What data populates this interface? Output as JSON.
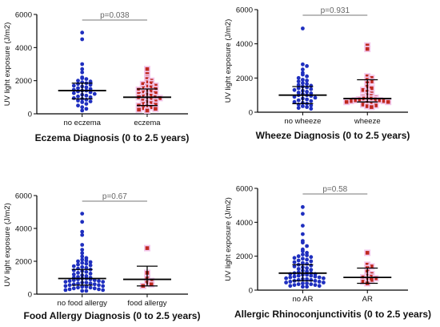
{
  "chart_data": [
    {
      "type": "scatter",
      "title": "Eczema Diagnosis (0 to 2.5 years)",
      "ylabel": "UV light exposure (J/m2)",
      "ylim": [
        0,
        6000
      ],
      "yticks": [
        "0",
        "2000",
        "4000",
        "6000"
      ],
      "categories": [
        "no eczema",
        "eczema"
      ],
      "annotation": "p=0.038",
      "colors": [
        "#1f2fbf",
        "#c0281f"
      ],
      "series": [
        {
          "median": 1400,
          "iqr": [
            900,
            1850
          ],
          "values": [
            4900,
            4500,
            3000,
            2700,
            2500,
            2200,
            2150,
            2100,
            2000,
            1950,
            1900,
            1850,
            1800,
            1750,
            1700,
            1650,
            1600,
            1550,
            1500,
            1450,
            1400,
            1400,
            1350,
            1300,
            1250,
            1200,
            1150,
            1100,
            1050,
            1000,
            950,
            900,
            850,
            800,
            750,
            700,
            600,
            500,
            400,
            300,
            200
          ]
        },
        {
          "median": 1000,
          "iqr": [
            500,
            1500
          ],
          "values": [
            2700,
            2400,
            2200,
            2100,
            2000,
            1900,
            1850,
            1800,
            1700,
            1650,
            1600,
            1550,
            1500,
            1450,
            1400,
            1350,
            1300,
            1250,
            1200,
            1150,
            1100,
            1050,
            1000,
            1000,
            950,
            900,
            850,
            800,
            750,
            700,
            650,
            600,
            550,
            500,
            450,
            400,
            350,
            300,
            250,
            200
          ]
        }
      ]
    },
    {
      "type": "scatter",
      "title": "Wheeze Diagnosis (0 to 2.5 years)",
      "ylabel": "UV light exposure (J/m2)",
      "ylim": [
        0,
        6000
      ],
      "yticks": [
        "0",
        "2000",
        "4000",
        "6000"
      ],
      "categories": [
        "no wheeze",
        "wheeze"
      ],
      "annotation": "p=0.931",
      "colors": [
        "#1f2fbf",
        "#c0281f"
      ],
      "series": [
        {
          "median": 1000,
          "iqr": [
            500,
            1500
          ],
          "values": [
            4900,
            2800,
            2700,
            2500,
            2300,
            2200,
            2100,
            2000,
            1900,
            1850,
            1800,
            1700,
            1650,
            1600,
            1550,
            1500,
            1450,
            1400,
            1350,
            1300,
            1250,
            1200,
            1150,
            1100,
            1050,
            1000,
            1000,
            950,
            900,
            850,
            800,
            750,
            700,
            650,
            600,
            550,
            500,
            450,
            400,
            350,
            300,
            250,
            200
          ]
        },
        {
          "median": 800,
          "iqr": [
            600,
            1900
          ],
          "values": [
            3900,
            3700,
            2100,
            2000,
            1900,
            1800,
            1700,
            1500,
            1400,
            1300,
            1200,
            1100,
            1000,
            950,
            900,
            850,
            800,
            800,
            800,
            750,
            750,
            700,
            700,
            650,
            650,
            600,
            600,
            550,
            500,
            450,
            400,
            350,
            300
          ]
        }
      ]
    },
    {
      "type": "scatter",
      "title": "Food Allergy Diagnosis (0 to 2.5 years)",
      "ylabel": "UV light exposure (J/m2)",
      "ylim": [
        0,
        6000
      ],
      "yticks": [
        "0",
        "2000",
        "4000",
        "6000"
      ],
      "categories": [
        "no food allergy",
        "food allergy"
      ],
      "annotation": "p=0.67",
      "colors": [
        "#1f2fbf",
        "#c0281f"
      ],
      "series": [
        {
          "median": 950,
          "iqr": [
            550,
            1500
          ],
          "values": [
            4900,
            4400,
            3800,
            3600,
            3000,
            2700,
            2500,
            2300,
            2200,
            2100,
            2050,
            2000,
            1950,
            1900,
            1850,
            1800,
            1750,
            1700,
            1650,
            1600,
            1550,
            1500,
            1450,
            1400,
            1350,
            1300,
            1250,
            1200,
            1150,
            1100,
            1050,
            1000,
            1000,
            950,
            950,
            900,
            900,
            850,
            850,
            800,
            800,
            750,
            750,
            700,
            700,
            650,
            650,
            600,
            600,
            550,
            550,
            500,
            500,
            450,
            450,
            400,
            400,
            350,
            350,
            300,
            300,
            250,
            250,
            200,
            200
          ]
        },
        {
          "median": 900,
          "iqr": [
            500,
            1700
          ],
          "values": [
            2800,
            1300,
            950,
            800,
            700,
            600,
            500
          ]
        }
      ]
    },
    {
      "type": "scatter",
      "title": "Allergic Rhinoconjunctivitis (0 to 2.5 years)",
      "ylabel": "UV light exposure (J/m2)",
      "ylim": [
        0,
        6000
      ],
      "yticks": [
        "0",
        "2000",
        "4000",
        "6000"
      ],
      "categories": [
        "no AR",
        "AR"
      ],
      "annotation": "p=0.58",
      "colors": [
        "#1f2fbf",
        "#c0281f"
      ],
      "series": [
        {
          "median": 1000,
          "iqr": [
            550,
            1500
          ],
          "values": [
            4900,
            4500,
            3800,
            3300,
            2900,
            2800,
            2600,
            2400,
            2300,
            2200,
            2100,
            2050,
            2000,
            1950,
            1900,
            1850,
            1800,
            1750,
            1700,
            1650,
            1600,
            1550,
            1500,
            1450,
            1400,
            1350,
            1300,
            1250,
            1200,
            1150,
            1100,
            1050,
            1000,
            1000,
            950,
            950,
            900,
            900,
            850,
            850,
            800,
            800,
            750,
            750,
            700,
            700,
            650,
            650,
            600,
            600,
            550,
            550,
            500,
            500,
            450,
            450,
            400,
            400,
            350,
            350,
            300,
            300,
            250,
            250,
            200,
            200
          ]
        },
        {
          "median": 750,
          "iqr": [
            400,
            1300
          ],
          "values": [
            2200,
            1500,
            1400,
            1300,
            1100,
            950,
            850,
            800,
            750,
            700,
            650,
            600,
            500,
            400
          ]
        }
      ]
    }
  ]
}
